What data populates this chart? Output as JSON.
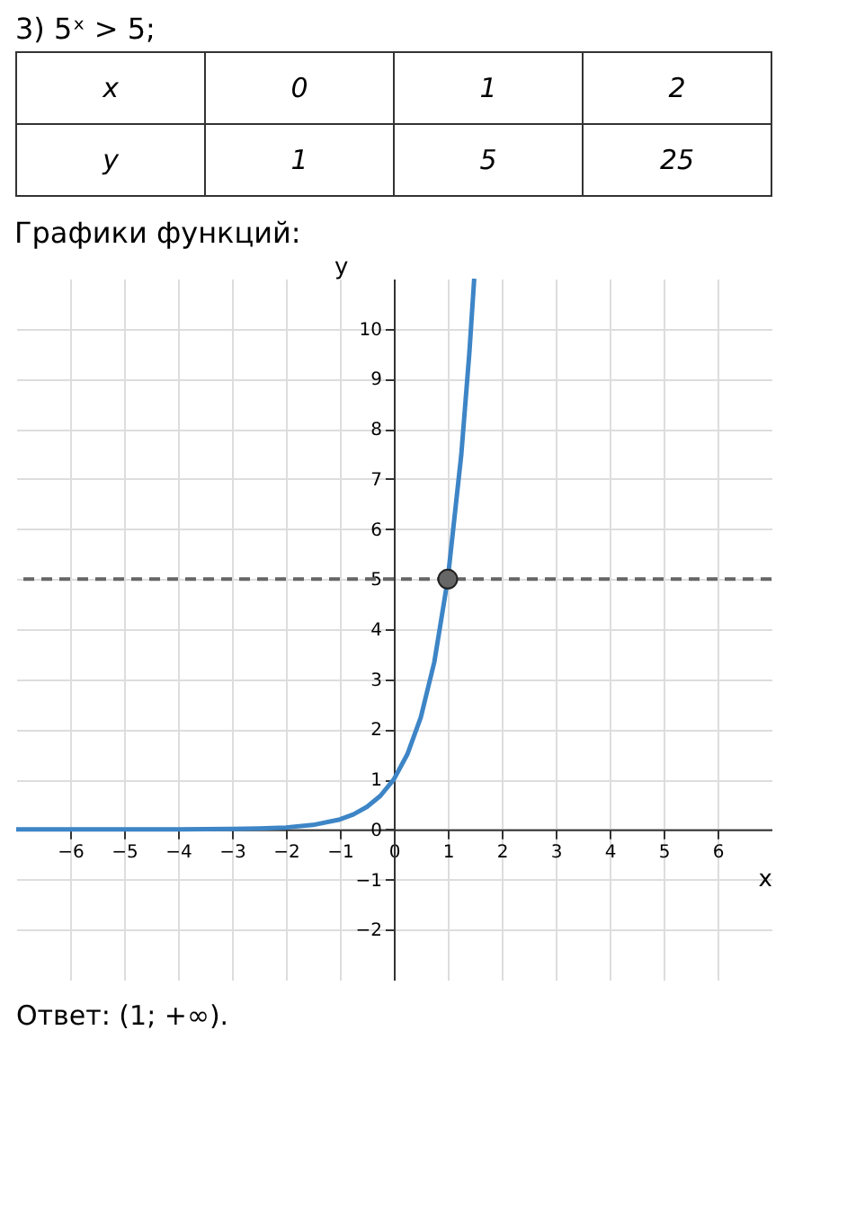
{
  "chart_data": [
    {
      "type": "other",
      "title": "3) 5ˣ > 5;",
      "annotations": [
        "x",
        "0",
        "1",
        "2",
        "y",
        "1",
        "5",
        "25"
      ]
    },
    {
      "type": "line",
      "title": "Графики функций:",
      "xlabel": "x",
      "ylabel": "y",
      "xlim": [
        -7,
        7
      ],
      "ylim": [
        -3,
        11
      ],
      "xticks": [
        -6,
        -5,
        -4,
        -3,
        -2,
        -1,
        0,
        1,
        2,
        3,
        4,
        5,
        6
      ],
      "yticks": [
        -2,
        -1,
        0,
        1,
        2,
        3,
        4,
        5,
        6,
        7,
        8,
        9,
        10
      ],
      "grid": true,
      "series": [
        {
          "type": "line",
          "color": "#3d85c6",
          "x": [
            -7,
            -6,
            -5,
            -4,
            -3,
            -2.5,
            -2,
            -1.5,
            -1,
            -0.75,
            -0.5,
            -0.25,
            0,
            0.25,
            0.5,
            0.75,
            1,
            1.25,
            1.4,
            1.49
          ],
          "values": [
            0,
            0,
            0,
            0,
            0.01,
            0.02,
            0.04,
            0.09,
            0.2,
            0.3,
            0.45,
            0.67,
            1,
            1.5,
            2.24,
            3.34,
            5,
            7.48,
            9.52,
            11
          ]
        },
        {
          "type": "scatter",
          "color": "#666666",
          "marker": "circle",
          "x": [
            1
          ],
          "values": [
            5
          ]
        }
      ],
      "ref_lines": [
        {
          "axis": "y",
          "value": 5,
          "color": "#666666",
          "line_style": "dashed"
        }
      ],
      "annotations": [
        "Ответ: (1; +∞)."
      ]
    }
  ]
}
